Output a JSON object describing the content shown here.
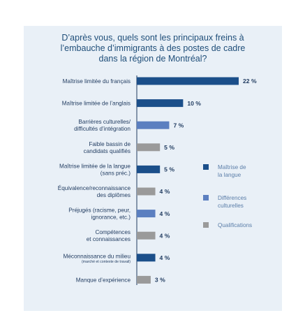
{
  "chart_data": {
    "type": "bar",
    "orientation": "horizontal",
    "title_lines": [
      "D’après vous, quels sont les principaux freins à",
      "l’embauche d’immigrants à des postes de cadre",
      "dans la région de Montréal?"
    ],
    "categories": [
      {
        "lines": [
          "Maîtrise limitée du français"
        ],
        "small": ""
      },
      {
        "lines": [
          "Maîtrise limitée de l’anglais"
        ],
        "small": ""
      },
      {
        "lines": [
          "Barrières culturelles/",
          "difficultés d’intégration"
        ],
        "small": ""
      },
      {
        "lines": [
          "Faible bassin de",
          "candidats qualifiés"
        ],
        "small": ""
      },
      {
        "lines": [
          "Maîtrise limitée de la langue",
          "(sans préc.)"
        ],
        "small": ""
      },
      {
        "lines": [
          "Équivalence/reconnaissance",
          "des diplômes"
        ],
        "small": ""
      },
      {
        "lines": [
          "Préjugés (racisme, peur,",
          "ignorance, etc.)"
        ],
        "small": ""
      },
      {
        "lines": [
          "Compétences",
          "et connaissances"
        ],
        "small": ""
      },
      {
        "lines": [
          "Méconnaissance du milieu"
        ],
        "small": "(marché et contexte de travail)"
      },
      {
        "lines": [
          "Manque d’expérience"
        ],
        "small": ""
      }
    ],
    "values": [
      22,
      10,
      7,
      5,
      5,
      4,
      4,
      4,
      4,
      3
    ],
    "value_labels": [
      "22 %",
      "10 %",
      "7 %",
      "5 %",
      "5 %",
      "4 %",
      "4 %",
      "4 %",
      "4 %",
      "3 %"
    ],
    "groups": [
      "langue",
      "langue",
      "culture",
      "qualif",
      "langue",
      "qualif",
      "culture",
      "qualif",
      "langue",
      "qualif"
    ],
    "xlim": [
      0,
      22
    ],
    "legend": {
      "placement": "right",
      "items": [
        {
          "key": "langue",
          "lines": [
            "Maîtrise de",
            "la langue"
          ],
          "color": "#1b4f8a"
        },
        {
          "key": "culture",
          "lines": [
            "Différences",
            "culturelles"
          ],
          "color": "#5b7fc0"
        },
        {
          "key": "qualif",
          "lines": [
            "Qualifications"
          ],
          "color": "#9a9a9a"
        }
      ]
    },
    "colors": {
      "langue": "#1b4f8a",
      "culture": "#5b7fc0",
      "qualif": "#9a9a9a",
      "axis": "#1f3a5f",
      "panel": "#e9f0f7"
    }
  }
}
